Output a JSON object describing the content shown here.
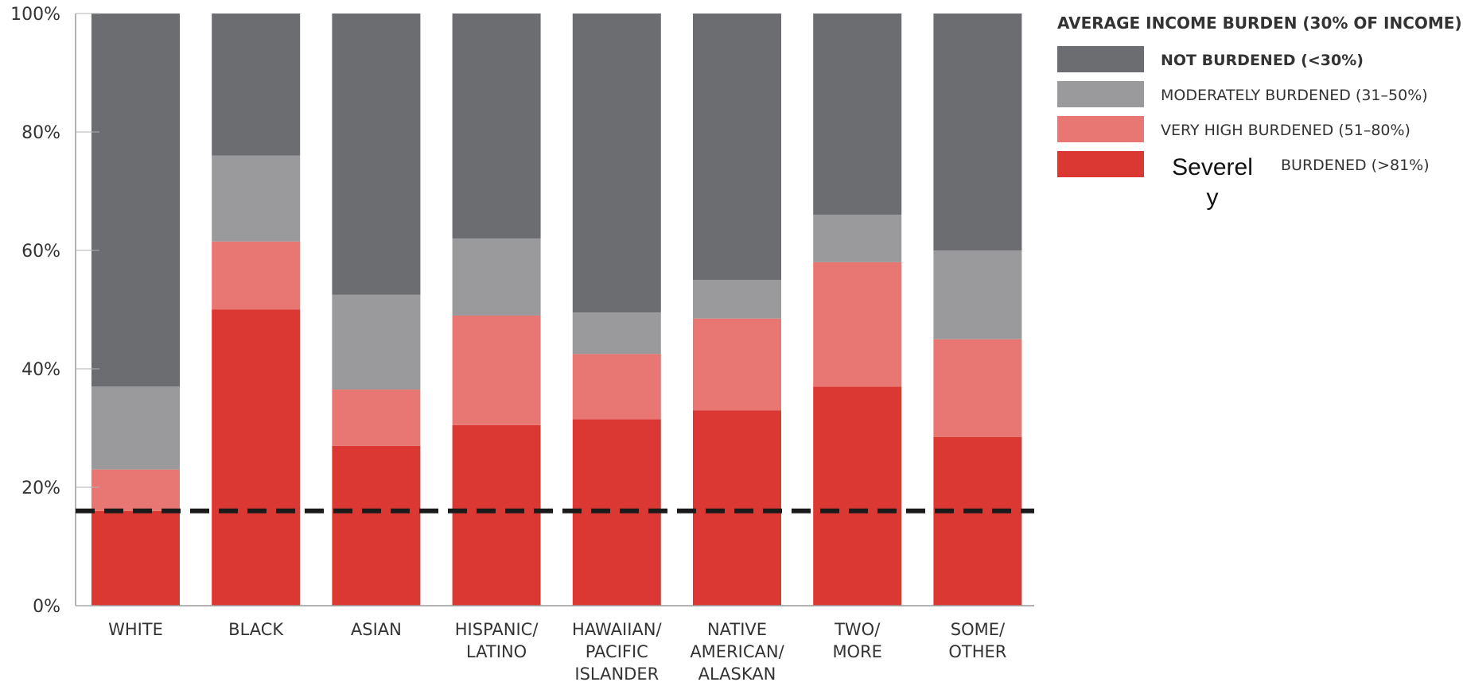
{
  "chart_data": {
    "type": "bar",
    "stacked": true,
    "percent_stacked": true,
    "categories": [
      [
        "WHITE"
      ],
      [
        "BLACK"
      ],
      [
        "ASIAN"
      ],
      [
        "HISPANIC/",
        "LATINO"
      ],
      [
        "HAWAIIAN/",
        "PACIFIC",
        "ISLANDER"
      ],
      [
        "NATIVE",
        "AMERICAN/",
        "ALASKAN"
      ],
      [
        "TWO/",
        "MORE"
      ],
      [
        "SOME/",
        "OTHER"
      ]
    ],
    "series": [
      {
        "name": "Severely BURDENED (>81%)",
        "color": "#db3834",
        "values": [
          16,
          50,
          27,
          30.5,
          31.5,
          33,
          37,
          28.5
        ]
      },
      {
        "name": "VERY HIGH BURDENED (51–80%)",
        "color": "#e87672",
        "values": [
          7,
          11.5,
          9.5,
          18.5,
          11,
          15.5,
          21,
          16.5
        ]
      },
      {
        "name": "MODERATELY BURDENED (31–50%)",
        "color": "#9a9a9c",
        "values": [
          14,
          14.5,
          16,
          13,
          7,
          6.5,
          8,
          15
        ]
      },
      {
        "name": "NOT BURDENED (<30%)",
        "color": "#6c6d70",
        "values": [
          63,
          24,
          47.5,
          38,
          50.5,
          45,
          34,
          40
        ]
      }
    ],
    "ylim": [
      0,
      100
    ],
    "yticks": [
      "0%",
      "20%",
      "40%",
      "60%",
      "80%",
      "100%"
    ],
    "reference_line": {
      "value": 16,
      "style": "dashed",
      "color": "#1a1a1a"
    },
    "legend": {
      "title": "AVERAGE INCOME BURDEN (30% OF INCOME)",
      "position": "top-right",
      "items": [
        {
          "label": "NOT BURDENED (<30%)",
          "color": "#6c6d70",
          "bold": true
        },
        {
          "label": "MODERATELY BURDENED (31–50%)",
          "color": "#9a9a9c"
        },
        {
          "label": "VERY HIGH BURDENED (51–80%)",
          "color": "#e87672"
        },
        {
          "label_parts": [
            "Severel",
            "y",
            "BURDENED (>81%)"
          ],
          "color": "#db3834"
        }
      ]
    },
    "grid": false
  }
}
